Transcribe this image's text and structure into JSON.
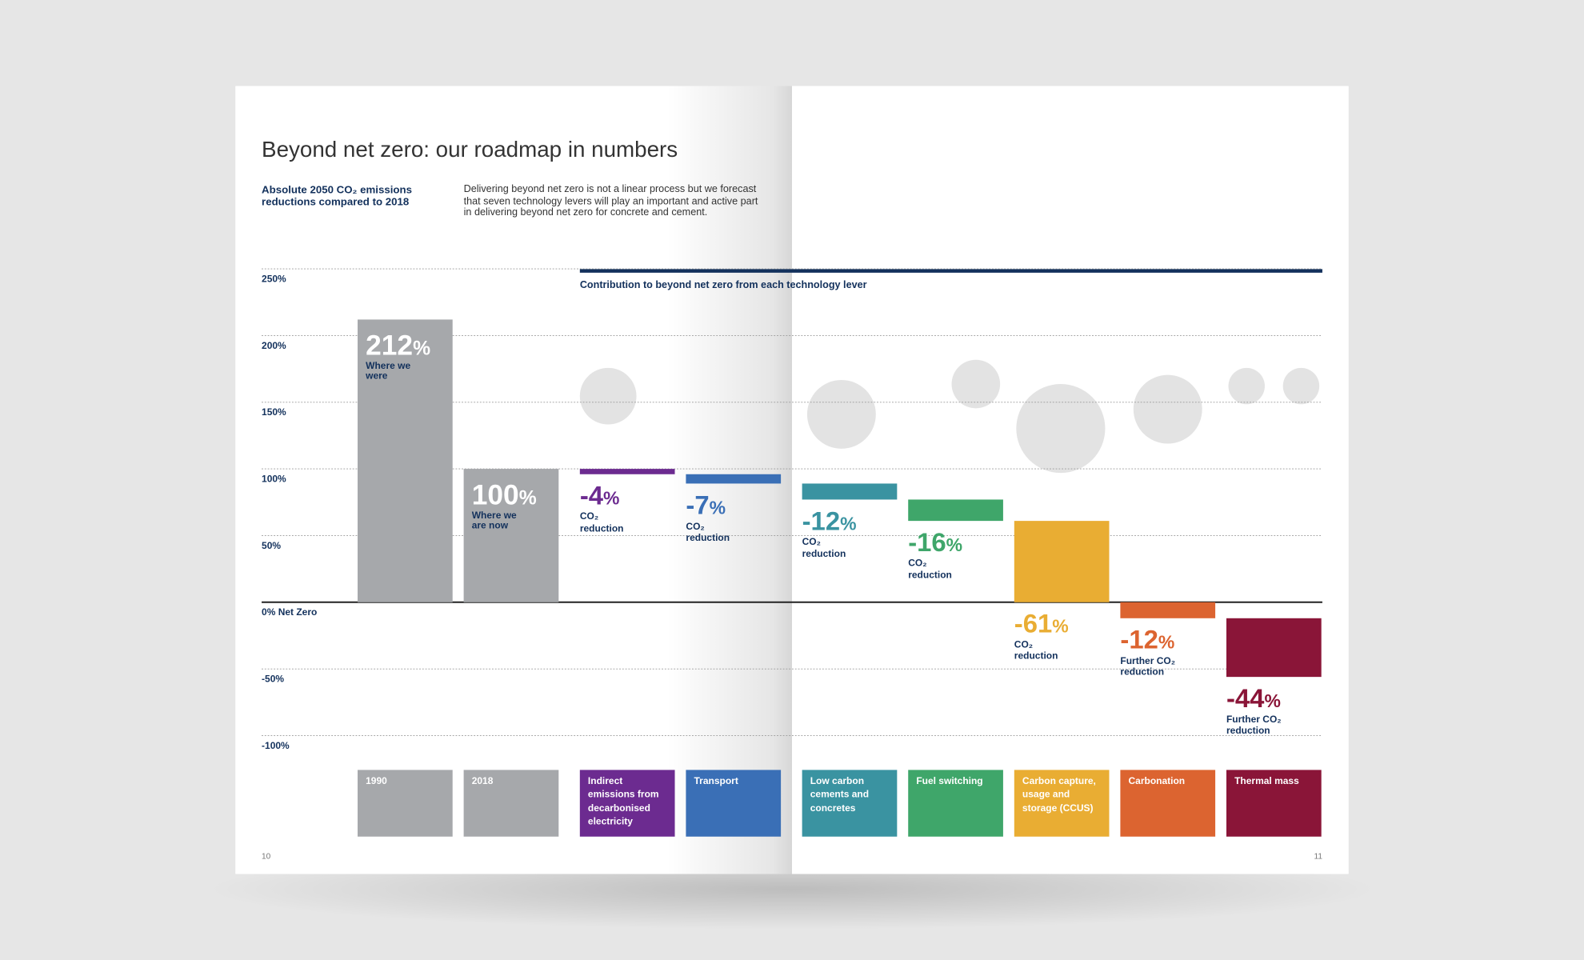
{
  "chart_data": {
    "type": "waterfall",
    "title": "Beyond net zero: our roadmap in numbers",
    "subtitle": "Absolute 2050 CO₂ emissions reductions compared to 2018",
    "description": "Delivering beyond net zero is not a linear process but we forecast that seven technology levers will play an important and active part in delivering beyond net zero for concrete and cement.",
    "section_title": "Contribution to beyond net zero from each technology lever",
    "categories": [
      "1990",
      "2018",
      "Indirect emissions from decarbonised electricity",
      "Transport",
      "Low carbon cements and concretes",
      "Fuel switching",
      "Carbon capture, usage and storage (CCUS)",
      "Carbonation",
      "Thermal mass"
    ],
    "values": [
      212,
      100,
      -4,
      -7,
      -12,
      -16,
      -61,
      -12,
      -44
    ],
    "value_labels": [
      "212%",
      "100%",
      "-4%",
      "-7%",
      "-12%",
      "-16%",
      "-61%",
      "-12%",
      "-44%"
    ],
    "measures": [
      "absolute",
      "absolute",
      "relative",
      "relative",
      "relative",
      "relative",
      "relative",
      "relative",
      "relative"
    ],
    "sublabels": [
      "Where we were",
      "Where we are now",
      "CO₂ reduction",
      "CO₂ reduction",
      "CO₂ reduction",
      "CO₂ reduction",
      "CO₂ reduction",
      "Further CO₂ reduction",
      "Further CO₂ reduction"
    ],
    "colors": [
      "#a6a8ab",
      "#a6a8ab",
      "#6c2b90",
      "#3a6fb6",
      "#3a93a1",
      "#3fa66a",
      "#e9ad33",
      "#dc6430",
      "#8a1538"
    ],
    "ylim": [
      -100,
      250
    ],
    "yticks": [
      {
        "value": 250,
        "label": "250%"
      },
      {
        "value": 200,
        "label": "200%"
      },
      {
        "value": 150,
        "label": "150%"
      },
      {
        "value": 100,
        "label": "100%"
      },
      {
        "value": 50,
        "label": "50%"
      },
      {
        "value": 0,
        "label": "0% Net Zero"
      },
      {
        "value": -50,
        "label": "-50%"
      },
      {
        "value": -100,
        "label": "-100%"
      }
    ],
    "grid": true
  },
  "pages": [
    "10",
    "11"
  ]
}
